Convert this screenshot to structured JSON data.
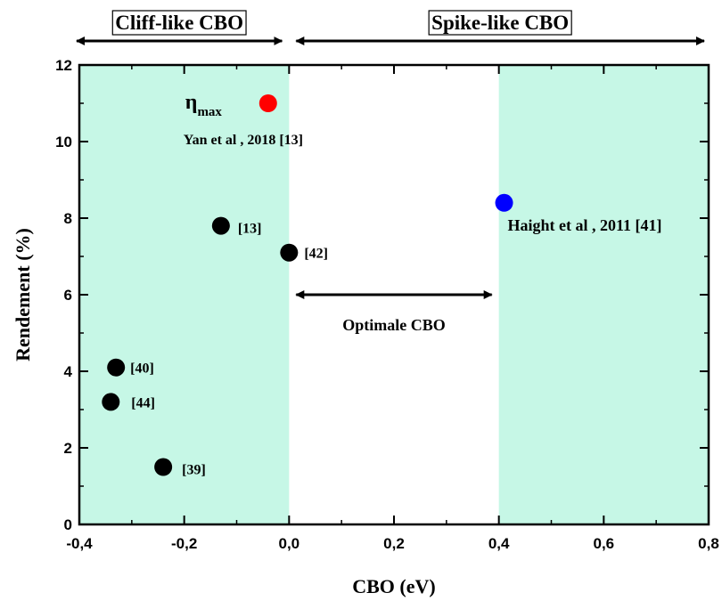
{
  "chart_data": {
    "type": "scatter",
    "xlabel": "CBO (eV)",
    "ylabel": "Rendement (%)",
    "xlim": [
      -0.4,
      0.8
    ],
    "ylim": [
      0,
      12
    ],
    "x_ticks": [
      "-0,4",
      "-0,2",
      "0,0",
      "0,2",
      "0,4",
      "0,6",
      "0,8"
    ],
    "y_ticks": [
      "0",
      "2",
      "4",
      "6",
      "8",
      "10",
      "12"
    ],
    "grid": false,
    "regions": [
      {
        "label": "Cliff-like CBO",
        "x_range": [
          -0.4,
          0.0
        ],
        "fill": "#c6f7e6"
      },
      {
        "label": "Spike-like CBO",
        "x_range": [
          0.4,
          0.8
        ],
        "fill": "#c6f7e6"
      }
    ],
    "range_arrows": [
      {
        "label": "Cliff-like CBO",
        "x_range": [
          -0.4,
          0.0
        ],
        "position": "above plot"
      },
      {
        "label": "Spike-like CBO",
        "x_range": [
          0.0,
          0.8
        ],
        "position": "above plot"
      },
      {
        "label": "Optimale CBO",
        "x_range": [
          0.0,
          0.4
        ],
        "y": 6.0
      }
    ],
    "points": [
      {
        "x": -0.04,
        "y": 11.0,
        "label": "Yan et al , 2018 [13]",
        "color": "#ff0000",
        "marker_label": "ηmax"
      },
      {
        "x": 0.41,
        "y": 8.4,
        "label": "Haight et al , 2011 [41]",
        "color": "#0000ff"
      },
      {
        "x": -0.13,
        "y": 7.8,
        "label": "[13]",
        "color": "#000000"
      },
      {
        "x": 0.0,
        "y": 7.1,
        "label": "[42]",
        "color": "#000000"
      },
      {
        "x": -0.33,
        "y": 4.1,
        "label": "[40]",
        "color": "#000000"
      },
      {
        "x": -0.34,
        "y": 3.2,
        "label": "[44]",
        "color": "#000000"
      },
      {
        "x": -0.24,
        "y": 1.5,
        "label": "[39]",
        "color": "#000000"
      }
    ]
  }
}
